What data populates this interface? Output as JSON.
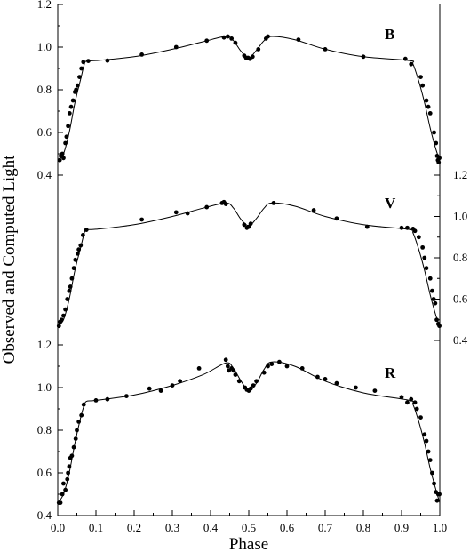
{
  "chart_data": {
    "type": "scatter",
    "xlabel": "Phase",
    "ylabel": "Observed and Computed Light",
    "x_ticks": [
      "0.0",
      "0.1",
      "0.2",
      "0.3",
      "0.4",
      "0.5",
      "0.6",
      "0.7",
      "0.8",
      "0.9",
      "1.0"
    ],
    "xlim": [
      0.0,
      1.0
    ],
    "panels": [
      {
        "name": "B",
        "y_ticks": [
          "0.4",
          "0.6",
          "0.8",
          "1.0",
          "1.2"
        ],
        "axis_side": "left",
        "ylim": [
          0.4,
          1.2
        ],
        "curve_knots": [
          [
            0.0,
            0.47
          ],
          [
            0.015,
            0.5
          ],
          [
            0.03,
            0.6
          ],
          [
            0.045,
            0.74
          ],
          [
            0.06,
            0.85
          ],
          [
            0.068,
            0.91
          ],
          [
            0.075,
            0.935
          ],
          [
            0.1,
            0.937
          ],
          [
            0.2,
            0.955
          ],
          [
            0.3,
            0.99
          ],
          [
            0.38,
            1.025
          ],
          [
            0.44,
            1.05
          ],
          [
            0.46,
            1.03
          ],
          [
            0.48,
            0.98
          ],
          [
            0.5,
            0.95
          ],
          [
            0.52,
            0.985
          ],
          [
            0.54,
            1.03
          ],
          [
            0.56,
            1.05
          ],
          [
            0.62,
            1.035
          ],
          [
            0.7,
            0.99
          ],
          [
            0.8,
            0.955
          ],
          [
            0.92,
            0.937
          ],
          [
            0.93,
            0.92
          ],
          [
            0.945,
            0.84
          ],
          [
            0.96,
            0.74
          ],
          [
            0.975,
            0.62
          ],
          [
            0.99,
            0.52
          ],
          [
            1.0,
            0.47
          ]
        ],
        "points": [
          [
            0.005,
            0.47
          ],
          [
            0.008,
            0.49
          ],
          [
            0.012,
            0.5
          ],
          [
            0.015,
            0.48
          ],
          [
            0.02,
            0.55
          ],
          [
            0.023,
            0.58
          ],
          [
            0.027,
            0.63
          ],
          [
            0.031,
            0.69
          ],
          [
            0.035,
            0.72
          ],
          [
            0.04,
            0.75
          ],
          [
            0.045,
            0.79
          ],
          [
            0.048,
            0.8
          ],
          [
            0.052,
            0.82
          ],
          [
            0.057,
            0.86
          ],
          [
            0.062,
            0.9
          ],
          [
            0.067,
            0.93
          ],
          [
            0.08,
            0.935
          ],
          [
            0.13,
            0.937
          ],
          [
            0.22,
            0.965
          ],
          [
            0.31,
            1.0
          ],
          [
            0.39,
            1.03
          ],
          [
            0.435,
            1.045
          ],
          [
            0.445,
            1.05
          ],
          [
            0.455,
            1.04
          ],
          [
            0.465,
            1.02
          ],
          [
            0.488,
            0.96
          ],
          [
            0.493,
            0.95
          ],
          [
            0.498,
            0.95
          ],
          [
            0.503,
            0.945
          ],
          [
            0.51,
            0.955
          ],
          [
            0.525,
            0.99
          ],
          [
            0.545,
            1.04
          ],
          [
            0.55,
            1.05
          ],
          [
            0.63,
            1.035
          ],
          [
            0.7,
            0.99
          ],
          [
            0.8,
            0.955
          ],
          [
            0.91,
            0.945
          ],
          [
            0.925,
            0.92
          ],
          [
            0.95,
            0.86
          ],
          [
            0.955,
            0.82
          ],
          [
            0.965,
            0.75
          ],
          [
            0.97,
            0.72
          ],
          [
            0.975,
            0.69
          ],
          [
            0.985,
            0.6
          ],
          [
            0.99,
            0.55
          ],
          [
            0.993,
            0.49
          ],
          [
            0.995,
            0.47
          ],
          [
            0.997,
            0.46
          ],
          [
            0.999,
            0.48
          ]
        ]
      },
      {
        "name": "V",
        "y_ticks": [
          "0.4",
          "0.6",
          "0.8",
          "1.0",
          "1.2"
        ],
        "axis_side": "right",
        "ylim": [
          0.4,
          1.2
        ],
        "curve_knots": [
          [
            0.0,
            0.47
          ],
          [
            0.015,
            0.5
          ],
          [
            0.03,
            0.6
          ],
          [
            0.045,
            0.74
          ],
          [
            0.06,
            0.85
          ],
          [
            0.068,
            0.91
          ],
          [
            0.075,
            0.935
          ],
          [
            0.1,
            0.938
          ],
          [
            0.2,
            0.96
          ],
          [
            0.3,
            1.0
          ],
          [
            0.38,
            1.04
          ],
          [
            0.44,
            1.065
          ],
          [
            0.46,
            1.04
          ],
          [
            0.48,
            0.985
          ],
          [
            0.5,
            0.955
          ],
          [
            0.52,
            0.99
          ],
          [
            0.54,
            1.04
          ],
          [
            0.56,
            1.065
          ],
          [
            0.62,
            1.05
          ],
          [
            0.7,
            1.0
          ],
          [
            0.8,
            0.96
          ],
          [
            0.92,
            0.937
          ],
          [
            0.93,
            0.92
          ],
          [
            0.945,
            0.84
          ],
          [
            0.96,
            0.74
          ],
          [
            0.975,
            0.62
          ],
          [
            0.99,
            0.52
          ],
          [
            1.0,
            0.47
          ]
        ],
        "points": [
          [
            0.003,
            0.47
          ],
          [
            0.006,
            0.49
          ],
          [
            0.01,
            0.5
          ],
          [
            0.015,
            0.52
          ],
          [
            0.02,
            0.55
          ],
          [
            0.025,
            0.6
          ],
          [
            0.03,
            0.64
          ],
          [
            0.033,
            0.66
          ],
          [
            0.037,
            0.7
          ],
          [
            0.042,
            0.75
          ],
          [
            0.046,
            0.79
          ],
          [
            0.052,
            0.82
          ],
          [
            0.055,
            0.84
          ],
          [
            0.06,
            0.86
          ],
          [
            0.066,
            0.91
          ],
          [
            0.075,
            0.935
          ],
          [
            0.22,
            0.985
          ],
          [
            0.31,
            1.02
          ],
          [
            0.34,
            1.015
          ],
          [
            0.39,
            1.045
          ],
          [
            0.43,
            1.065
          ],
          [
            0.435,
            1.07
          ],
          [
            0.44,
            1.06
          ],
          [
            0.488,
            0.96
          ],
          [
            0.495,
            0.945
          ],
          [
            0.5,
            0.95
          ],
          [
            0.505,
            0.965
          ],
          [
            0.565,
            1.065
          ],
          [
            0.67,
            1.03
          ],
          [
            0.73,
            0.99
          ],
          [
            0.81,
            0.95
          ],
          [
            0.9,
            0.945
          ],
          [
            0.915,
            0.945
          ],
          [
            0.93,
            0.94
          ],
          [
            0.935,
            0.93
          ],
          [
            0.945,
            0.9
          ],
          [
            0.955,
            0.85
          ],
          [
            0.96,
            0.8
          ],
          [
            0.965,
            0.75
          ],
          [
            0.975,
            0.7
          ],
          [
            0.98,
            0.64
          ],
          [
            0.984,
            0.6
          ],
          [
            0.988,
            0.58
          ],
          [
            0.992,
            0.5
          ],
          [
            0.996,
            0.48
          ],
          [
            0.999,
            0.47
          ]
        ]
      },
      {
        "name": "R",
        "y_ticks": [
          "0.4",
          "0.6",
          "0.8",
          "1.0",
          "1.2"
        ],
        "axis_side": "left",
        "ylim": [
          0.4,
          1.2
        ],
        "curve_knots": [
          [
            0.0,
            0.46
          ],
          [
            0.015,
            0.5
          ],
          [
            0.03,
            0.6
          ],
          [
            0.045,
            0.74
          ],
          [
            0.06,
            0.86
          ],
          [
            0.068,
            0.91
          ],
          [
            0.075,
            0.935
          ],
          [
            0.1,
            0.94
          ],
          [
            0.2,
            0.965
          ],
          [
            0.3,
            1.01
          ],
          [
            0.38,
            1.06
          ],
          [
            0.44,
            1.115
          ],
          [
            0.46,
            1.09
          ],
          [
            0.48,
            1.03
          ],
          [
            0.5,
            0.985
          ],
          [
            0.52,
            1.02
          ],
          [
            0.54,
            1.085
          ],
          [
            0.56,
            1.12
          ],
          [
            0.62,
            1.1
          ],
          [
            0.7,
            1.03
          ],
          [
            0.8,
            0.975
          ],
          [
            0.92,
            0.94
          ],
          [
            0.93,
            0.92
          ],
          [
            0.945,
            0.84
          ],
          [
            0.96,
            0.74
          ],
          [
            0.975,
            0.62
          ],
          [
            0.99,
            0.52
          ],
          [
            1.0,
            0.46
          ]
        ],
        "points": [
          [
            0.003,
            0.46
          ],
          [
            0.007,
            0.46
          ],
          [
            0.012,
            0.5
          ],
          [
            0.015,
            0.55
          ],
          [
            0.02,
            0.52
          ],
          [
            0.025,
            0.57
          ],
          [
            0.027,
            0.6
          ],
          [
            0.03,
            0.63
          ],
          [
            0.033,
            0.67
          ],
          [
            0.037,
            0.68
          ],
          [
            0.042,
            0.72
          ],
          [
            0.047,
            0.76
          ],
          [
            0.05,
            0.8
          ],
          [
            0.055,
            0.84
          ],
          [
            0.062,
            0.87
          ],
          [
            0.068,
            0.92
          ],
          [
            0.1,
            0.94
          ],
          [
            0.13,
            0.945
          ],
          [
            0.18,
            0.96
          ],
          [
            0.24,
            0.995
          ],
          [
            0.27,
            0.985
          ],
          [
            0.3,
            1.01
          ],
          [
            0.32,
            1.03
          ],
          [
            0.37,
            1.09
          ],
          [
            0.44,
            1.13
          ],
          [
            0.445,
            1.1
          ],
          [
            0.448,
            1.08
          ],
          [
            0.455,
            1.09
          ],
          [
            0.46,
            1.08
          ],
          [
            0.465,
            1.06
          ],
          [
            0.475,
            1.03
          ],
          [
            0.49,
            1.0
          ],
          [
            0.495,
            0.99
          ],
          [
            0.5,
            0.985
          ],
          [
            0.505,
            0.995
          ],
          [
            0.512,
            1.01
          ],
          [
            0.52,
            1.03
          ],
          [
            0.54,
            1.07
          ],
          [
            0.55,
            1.1
          ],
          [
            0.56,
            1.11
          ],
          [
            0.58,
            1.12
          ],
          [
            0.6,
            1.1
          ],
          [
            0.64,
            1.09
          ],
          [
            0.68,
            1.05
          ],
          [
            0.7,
            1.04
          ],
          [
            0.73,
            1.02
          ],
          [
            0.78,
            1.0
          ],
          [
            0.83,
            0.985
          ],
          [
            0.9,
            0.955
          ],
          [
            0.915,
            0.93
          ],
          [
            0.925,
            0.945
          ],
          [
            0.935,
            0.93
          ],
          [
            0.94,
            0.9
          ],
          [
            0.95,
            0.86
          ],
          [
            0.96,
            0.78
          ],
          [
            0.965,
            0.75
          ],
          [
            0.97,
            0.7
          ],
          [
            0.975,
            0.66
          ],
          [
            0.98,
            0.6
          ],
          [
            0.985,
            0.55
          ],
          [
            0.99,
            0.51
          ],
          [
            0.993,
            0.47
          ],
          [
            0.996,
            0.5
          ],
          [
            0.999,
            0.5
          ]
        ]
      }
    ]
  }
}
